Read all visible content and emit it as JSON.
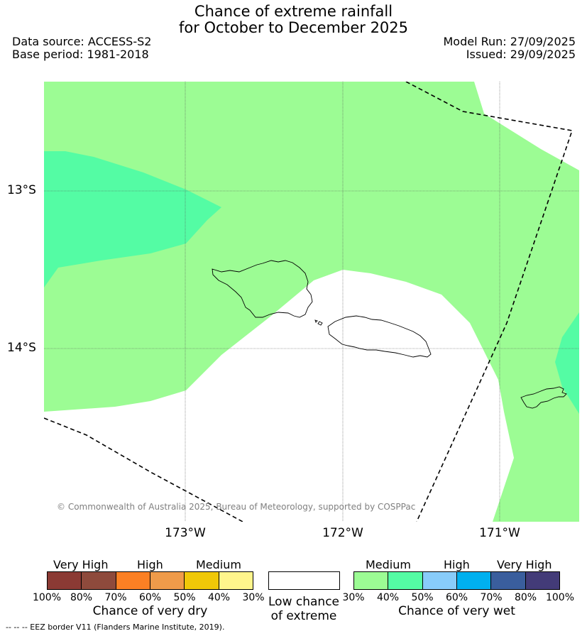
{
  "header": {
    "title_line1": "Chance of extreme rainfall",
    "title_line2": "for October to December 2025",
    "data_source": "Data source: ACCESS-S2",
    "base_period": "Base period: 1981-2018",
    "model_run": "Model Run: 27/09/2025",
    "issued": "Issued: 29/09/2025"
  },
  "map": {
    "lat_labels": [
      "13°S",
      "14°S"
    ],
    "lon_labels": [
      "173°W",
      "172°W",
      "171°W"
    ],
    "copyright": "© Commonwealth of Australia 2025, Bureau of Meteorology, supported by COSPPac",
    "colors": {
      "medium_wet": "#9cfc94",
      "mid_wet": "#54fca4",
      "border": "#000000"
    }
  },
  "legend": {
    "dry": {
      "categories": [
        "Very High",
        "High",
        "Medium"
      ],
      "colors": [
        "#8b3a34",
        "#8e4a3c",
        "#fc8024",
        "#ef9b4a",
        "#f0c808",
        "#fff58c"
      ],
      "ticks": [
        "100%",
        "80%",
        "70%",
        "60%",
        "50%",
        "40%",
        "30%"
      ],
      "title": "Chance of very dry"
    },
    "low": {
      "title_line1": "Low chance",
      "title_line2": "of extreme"
    },
    "wet": {
      "categories": [
        "Medium",
        "High",
        "Very High"
      ],
      "colors": [
        "#9cfc94",
        "#54fca4",
        "#88ccfa",
        "#00b0ef",
        "#3a5e9d",
        "#433b78"
      ],
      "ticks": [
        "30%",
        "40%",
        "50%",
        "60%",
        "70%",
        "80%",
        "100%"
      ],
      "title": "Chance of very wet"
    }
  },
  "footer": {
    "eez": "--  --  -- EEZ border V11 (Flanders Marine Institute, 2019)."
  }
}
